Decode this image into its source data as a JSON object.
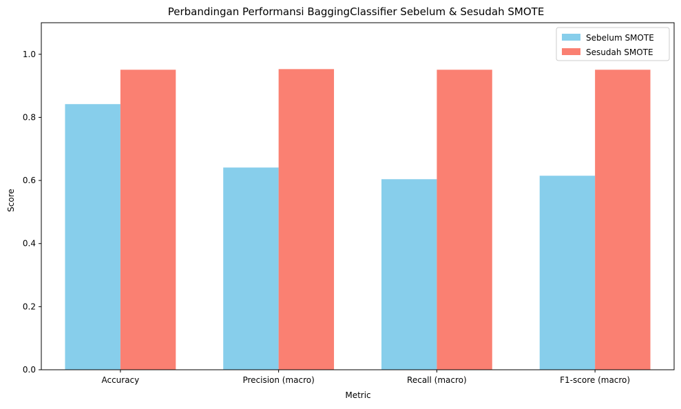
{
  "chart_data": {
    "type": "bar",
    "title": "Perbandingan Performansi BaggingClassifier Sebelum & Sesudah SMOTE",
    "xlabel": "Metric",
    "ylabel": "Score",
    "categories": [
      "Accuracy",
      "Precision (macro)",
      "Recall (macro)",
      "F1-score (macro)"
    ],
    "series": [
      {
        "name": "Sebelum SMOTE",
        "values": [
          0.842,
          0.641,
          0.604,
          0.615
        ],
        "color": "#87CEEB"
      },
      {
        "name": "Sesudah SMOTE",
        "values": [
          0.951,
          0.953,
          0.951,
          0.951
        ],
        "color": "#FA8072"
      }
    ],
    "ylim": [
      0,
      1.1
    ],
    "yticks": [
      "0.0",
      "0.2",
      "0.4",
      "0.6",
      "0.8",
      "1.0"
    ],
    "grid": false,
    "legend": "top-right"
  }
}
